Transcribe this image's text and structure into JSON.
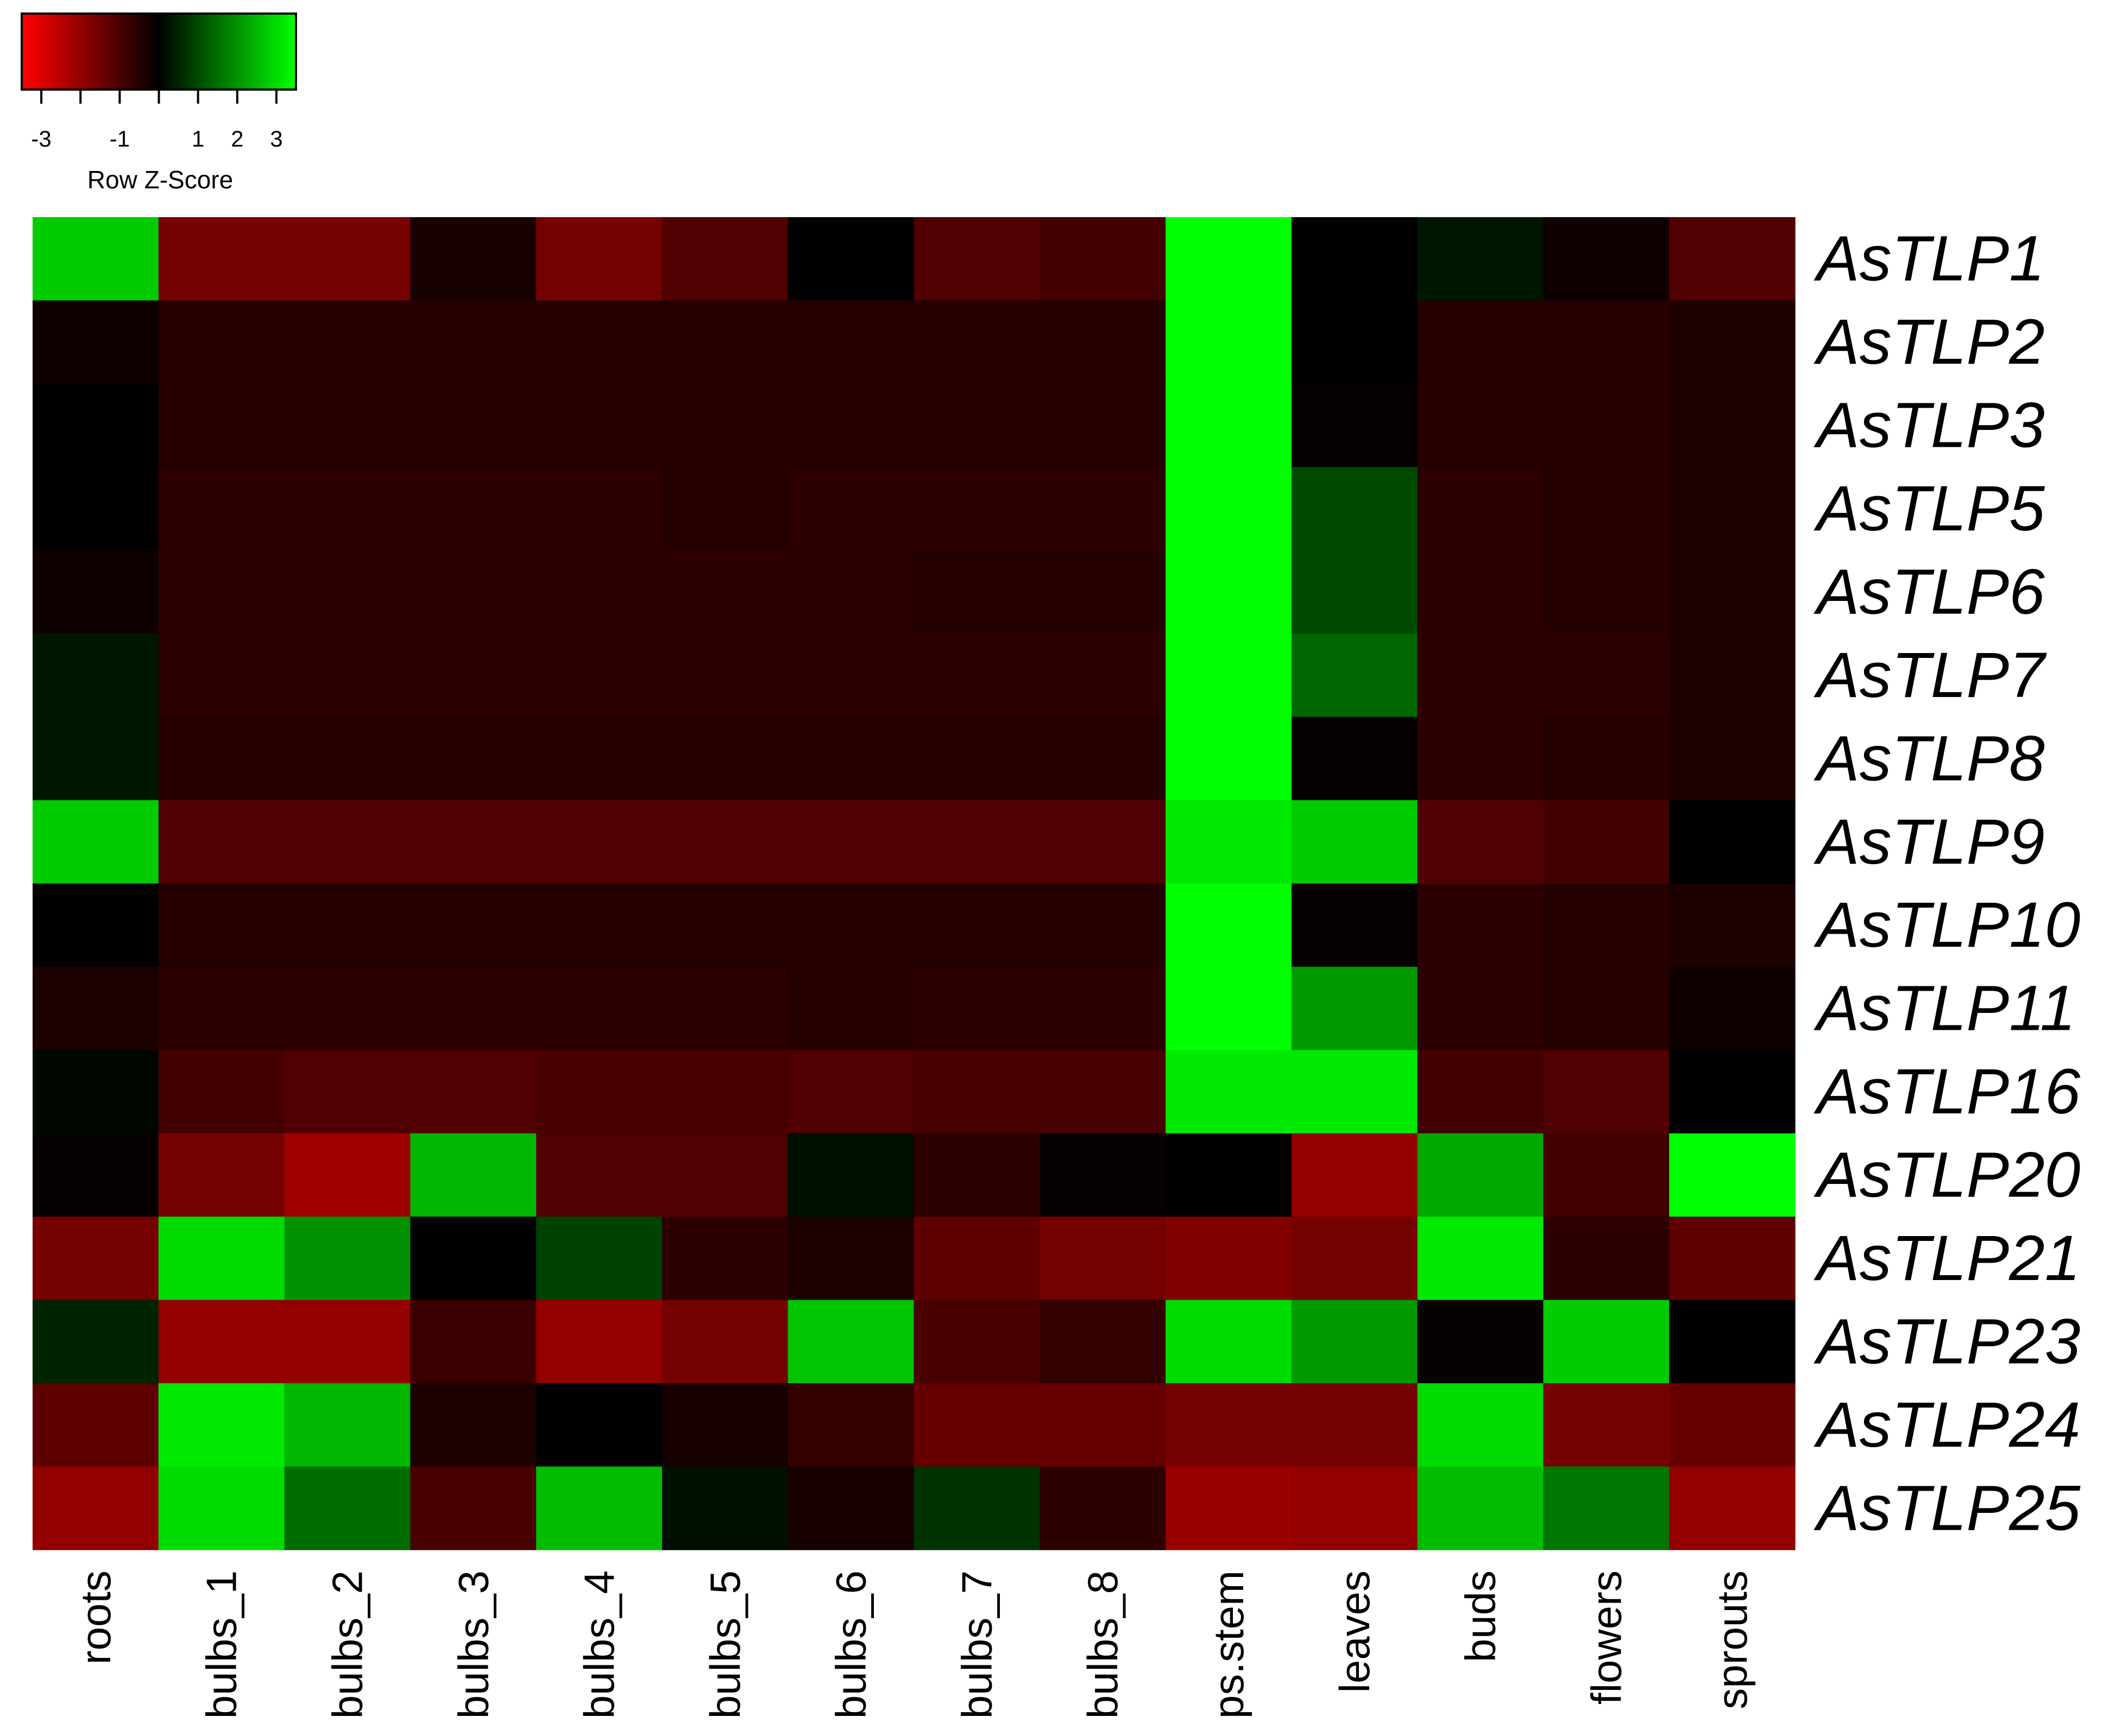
{
  "chart_data": {
    "type": "heatmap",
    "columns": [
      "roots",
      "bulbs_1",
      "bulbs_2",
      "bulbs_3",
      "bulbs_4",
      "bulbs_5",
      "bulbs_6",
      "bulbs_7",
      "bulbs_8",
      "ps.stem",
      "leaves",
      "buds",
      "flowers",
      "sprouts"
    ],
    "rows": [
      "AsTLP1",
      "AsTLP2",
      "AsTLP3",
      "AsTLP5",
      "AsTLP6",
      "AsTLP7",
      "AsTLP8",
      "AsTLP9",
      "AsTLP10",
      "AsTLP11",
      "AsTLP16",
      "AsTLP20",
      "AsTLP21",
      "AsTLP23",
      "AsTLP24",
      "AsTLP25"
    ],
    "values": [
      [
        2.8,
        -1.6,
        -1.6,
        -0.3,
        -1.6,
        -1.1,
        0.0,
        -1.1,
        -0.9,
        3.5,
        0.0,
        0.3,
        -0.2,
        -1.1
      ],
      [
        -0.2,
        -0.5,
        -0.5,
        -0.5,
        -0.5,
        -0.5,
        -0.5,
        -0.5,
        -0.5,
        3.5,
        0.0,
        -0.5,
        -0.5,
        -0.4
      ],
      [
        0.0,
        -0.5,
        -0.5,
        -0.5,
        -0.5,
        -0.5,
        -0.5,
        -0.5,
        -0.5,
        3.5,
        -0.1,
        -0.5,
        -0.5,
        -0.4
      ],
      [
        0.0,
        -0.6,
        -0.6,
        -0.6,
        -0.6,
        -0.5,
        -0.6,
        -0.6,
        -0.6,
        3.5,
        1.0,
        -0.6,
        -0.5,
        -0.4
      ],
      [
        -0.2,
        -0.6,
        -0.6,
        -0.6,
        -0.6,
        -0.6,
        -0.6,
        -0.5,
        -0.5,
        3.5,
        1.0,
        -0.6,
        -0.5,
        -0.4
      ],
      [
        0.3,
        -0.6,
        -0.6,
        -0.6,
        -0.6,
        -0.6,
        -0.6,
        -0.6,
        -0.6,
        3.5,
        1.4,
        -0.6,
        -0.6,
        -0.4
      ],
      [
        0.3,
        -0.5,
        -0.5,
        -0.5,
        -0.5,
        -0.5,
        -0.5,
        -0.5,
        -0.5,
        3.5,
        -0.1,
        -0.6,
        -0.5,
        -0.4
      ],
      [
        2.8,
        -1.1,
        -1.1,
        -1.1,
        -1.1,
        -1.1,
        -1.1,
        -1.1,
        -1.1,
        3.2,
        2.8,
        -1.1,
        -0.9,
        0.0
      ],
      [
        0.0,
        -0.5,
        -0.5,
        -0.5,
        -0.5,
        -0.5,
        -0.5,
        -0.5,
        -0.5,
        3.5,
        -0.1,
        -0.6,
        -0.5,
        -0.4
      ],
      [
        -0.4,
        -0.6,
        -0.6,
        -0.6,
        -0.6,
        -0.6,
        -0.5,
        -0.6,
        -0.6,
        3.5,
        2.1,
        -0.6,
        -0.5,
        -0.2
      ],
      [
        0.1,
        -0.9,
        -1.1,
        -1.1,
        -1.0,
        -1.0,
        -1.1,
        -1.0,
        -1.0,
        3.2,
        3.2,
        -0.9,
        -1.1,
        0.0
      ],
      [
        -0.1,
        -1.6,
        -2.2,
        2.5,
        -1.1,
        -1.1,
        0.2,
        -0.6,
        -0.1,
        0.0,
        -2.0,
        2.3,
        -0.9,
        3.5
      ],
      [
        -1.6,
        3.0,
        2.0,
        0.0,
        0.9,
        -0.6,
        -0.4,
        -1.3,
        -1.6,
        -1.8,
        -1.6,
        3.2,
        -0.6,
        -1.3
      ],
      [
        0.5,
        -2.0,
        -2.0,
        -0.8,
        -2.0,
        -1.6,
        2.7,
        -1.0,
        -0.7,
        3.0,
        2.1,
        -0.1,
        2.8,
        0.0
      ],
      [
        -1.3,
        3.2,
        2.5,
        -0.4,
        0.0,
        -0.3,
        -0.7,
        -1.4,
        -1.4,
        -1.6,
        -1.6,
        3.0,
        -1.6,
        -1.4
      ],
      [
        -2.0,
        3.0,
        1.5,
        -1.0,
        2.6,
        0.2,
        -0.3,
        0.7,
        -0.6,
        -2.1,
        -2.0,
        2.6,
        1.6,
        -2.0
      ]
    ],
    "colorscale": {
      "low_color": "#ff0000",
      "mid_color": "#000000",
      "high_color": "#00ff00",
      "range": [
        -3.5,
        3.5
      ],
      "ticks": [
        "-3",
        "-1",
        "1",
        "2",
        "3"
      ],
      "tick_values": [
        -3,
        -1,
        1,
        2,
        3
      ],
      "title": "Row Z-Score"
    },
    "legend_placement": "top-left"
  }
}
